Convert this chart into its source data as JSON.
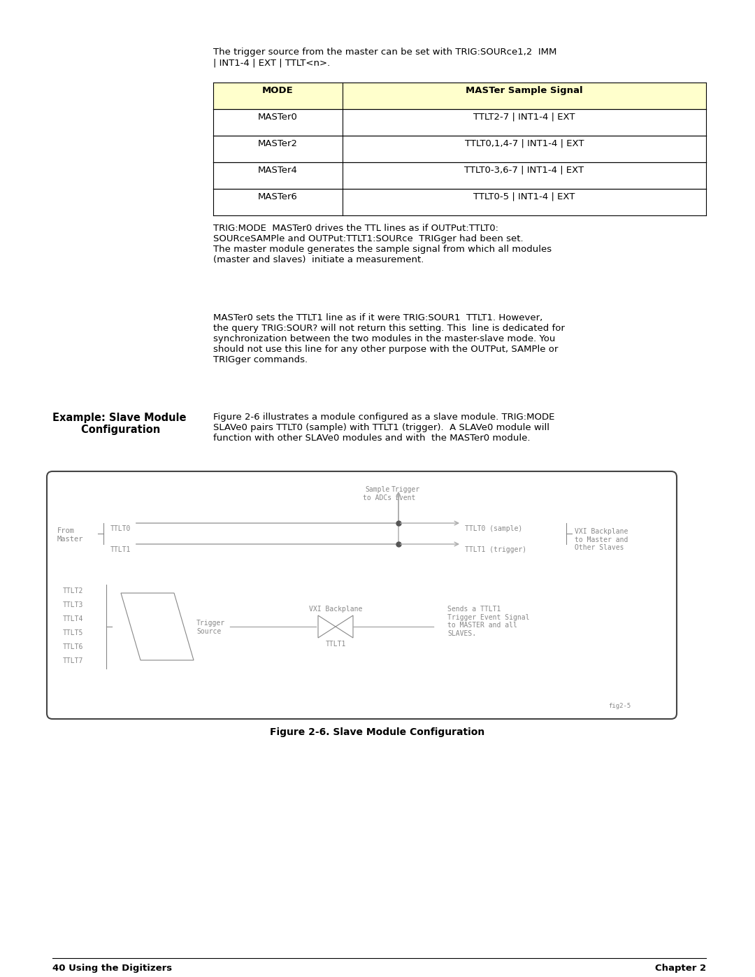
{
  "page_bg": "#ffffff",
  "table_header_bg": "#ffffcc",
  "table_border": "#000000",
  "intro_text": "The trigger source from the master can be set with TRIG:SOURce1,2  IMM\n| INT1-4 | EXT | TTLT<n>.",
  "table_rows": [
    [
      "MODE",
      "MASTer Sample Signal"
    ],
    [
      "MASTer0",
      "TTLT2-7 | INT1-4 | EXT"
    ],
    [
      "MASTer2",
      "TTLT0,1,4-7 | INT1-4 | EXT"
    ],
    [
      "MASTer4",
      "TTLT0-3,6-7 | INT1-4 | EXT"
    ],
    [
      "MASTer6",
      "TTLT0-5 | INT1-4 | EXT"
    ]
  ],
  "para1": "TRIG:MODE  MASTer0 drives the TTL lines as if OUTPut:TTLT0:\nSOURceSAMPle and OUTPut:TTLT1:SOURce  TRIGger had been set.\nThe master module generates the sample signal from which all modules\n(master and slaves)  initiate a measurement.",
  "para2": "MASTer0 sets the TTLT1 line as if it were TRIG:SOUR1  TTLT1. However,\nthe query TRIG:SOUR? will not return this setting. This  line is dedicated for\nsynchronization between the two modules in the master-slave mode. You\nshould not use this line for any other purpose with the OUTPut, SAMPle or\nTRIGger commands.",
  "section_title1": "Example: Slave Module",
  "section_title2": "        Configuration",
  "section_body": "Figure 2-6 illustrates a module configured as a slave module. TRIG:MODE\nSLAVe0 pairs TTLT0 (sample) with TTLT1 (trigger).  A SLAVe0 module will\nfunction with other SLAVe0 modules and with  the MASTer0 module.",
  "fig_caption": "Figure 2-6. Slave Module Configuration",
  "footer_left": "40 Using the Digitizers",
  "footer_right": "Chapter 2",
  "diagram_line_color": "#aaaaaa",
  "diagram_text_color": "#888888",
  "diagram_dot_color": "#555555"
}
